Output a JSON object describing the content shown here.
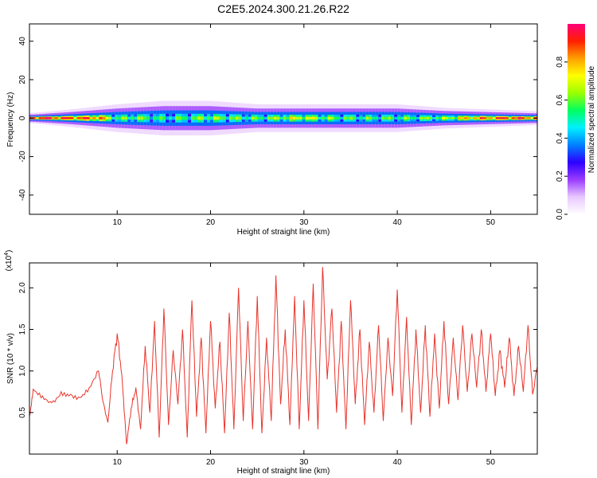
{
  "figure": {
    "title": "C2E5.2024.300.21.26.R22"
  },
  "chart_data": [
    {
      "type": "heatmap",
      "title": "",
      "xlabel": "Height of straight line (km)",
      "ylabel": "Frequency (Hz)",
      "xlim": [
        0.6,
        55
      ],
      "ylim": [
        -50,
        49
      ],
      "xticks": [
        "10",
        "20",
        "30",
        "40",
        "50"
      ],
      "yticks": [
        "-40",
        "-20",
        "0",
        "20",
        "40"
      ],
      "colorbar": {
        "label": "Normalized spectral amplitude",
        "range": [
          0,
          1
        ],
        "ticks": [
          "0.0",
          "0.2",
          "0.4",
          "0.6",
          "0.8"
        ],
        "colors": [
          "#ffffff",
          "#e8c8ff",
          "#9a3cff",
          "#2c00ff",
          "#0080ff",
          "#00f0ff",
          "#00ff60",
          "#9aff00",
          "#ffff00",
          "#ffa000",
          "#ff2000",
          "#ff0078"
        ]
      },
      "band_center_hz": 0,
      "band_halfwidth_hz": [
        1.5,
        2.5,
        4,
        5,
        5,
        4,
        4,
        4,
        4,
        3,
        2.5,
        2
      ],
      "band_halfwidth_x": [
        1,
        5,
        10,
        15,
        20,
        25,
        30,
        35,
        40,
        45,
        50,
        55
      ],
      "peak_amplitude_x": [
        1,
        4,
        8,
        10,
        12,
        15,
        20,
        25,
        30,
        32,
        35,
        40,
        45,
        48,
        52,
        55
      ],
      "peak_amplitude": [
        0.92,
        0.9,
        0.85,
        0.55,
        0.6,
        0.5,
        0.6,
        0.55,
        0.7,
        0.6,
        0.55,
        0.55,
        0.6,
        0.8,
        0.9,
        0.85
      ]
    },
    {
      "type": "line",
      "title": "",
      "xlabel": "Height of straight line (km)",
      "ylabel": "SNR (10 * v/v)",
      "scale_label": "(x10",
      "scale_exponent": "4",
      "xlim": [
        0.6,
        55
      ],
      "ylim": [
        0,
        2.3
      ],
      "xticks": [
        "10",
        "20",
        "30",
        "40",
        "50"
      ],
      "yticks": [
        "0.5",
        "1.0",
        "1.5",
        "2.0"
      ],
      "series": [
        {
          "color": "#e8342c",
          "x": [
            0.6,
            1,
            2,
            3,
            4,
            5,
            6,
            7,
            8,
            8.5,
            9,
            9.5,
            10,
            10.5,
            11,
            11.5,
            12,
            12.5,
            13,
            13.5,
            14,
            14.5,
            15,
            15.5,
            16,
            16.5,
            17,
            17.5,
            18,
            18.5,
            19,
            19.5,
            20,
            20.5,
            21,
            21.5,
            22,
            22.5,
            23,
            23.5,
            24,
            24.5,
            25,
            25.5,
            26,
            26.5,
            27,
            27.5,
            28,
            28.5,
            29,
            29.5,
            30,
            30.5,
            31,
            31.5,
            32,
            32.5,
            33,
            33.5,
            34,
            34.5,
            35,
            35.5,
            36,
            36.5,
            37,
            37.5,
            38,
            38.5,
            39,
            39.5,
            40,
            40.5,
            41,
            41.5,
            42,
            42.5,
            43,
            43.5,
            44,
            44.5,
            45,
            45.5,
            46,
            46.5,
            47,
            47.5,
            48,
            48.5,
            49,
            49.5,
            50,
            50.5,
            51,
            51.5,
            52,
            52.5,
            53,
            53.5,
            54,
            54.5,
            55
          ],
          "y": [
            0.45,
            0.78,
            0.7,
            0.62,
            0.75,
            0.72,
            0.68,
            0.8,
            1.0,
            0.62,
            0.38,
            1.0,
            1.45,
            0.95,
            0.12,
            0.55,
            0.8,
            0.3,
            1.3,
            0.5,
            1.6,
            0.2,
            1.75,
            0.35,
            1.25,
            0.6,
            1.5,
            0.2,
            1.85,
            0.45,
            1.4,
            0.25,
            1.6,
            0.55,
            1.35,
            0.25,
            1.7,
            0.3,
            2.0,
            0.4,
            1.6,
            0.3,
            1.9,
            0.25,
            1.4,
            0.4,
            2.15,
            0.6,
            1.5,
            0.35,
            1.9,
            0.3,
            1.85,
            0.4,
            2.05,
            0.3,
            2.25,
            0.9,
            1.75,
            0.5,
            1.6,
            0.3,
            1.85,
            0.6,
            1.5,
            0.35,
            1.35,
            0.5,
            1.55,
            0.4,
            1.4,
            0.7,
            1.98,
            0.5,
            1.65,
            0.35,
            1.5,
            0.5,
            1.55,
            0.45,
            1.45,
            0.55,
            1.6,
            0.6,
            1.4,
            0.65,
            1.55,
            0.75,
            1.45,
            0.8,
            1.5,
            0.75,
            1.45,
            0.7,
            1.25,
            0.8,
            1.4,
            0.7,
            1.3,
            0.75,
            1.55,
            0.72,
            1.05
          ]
        }
      ]
    }
  ]
}
